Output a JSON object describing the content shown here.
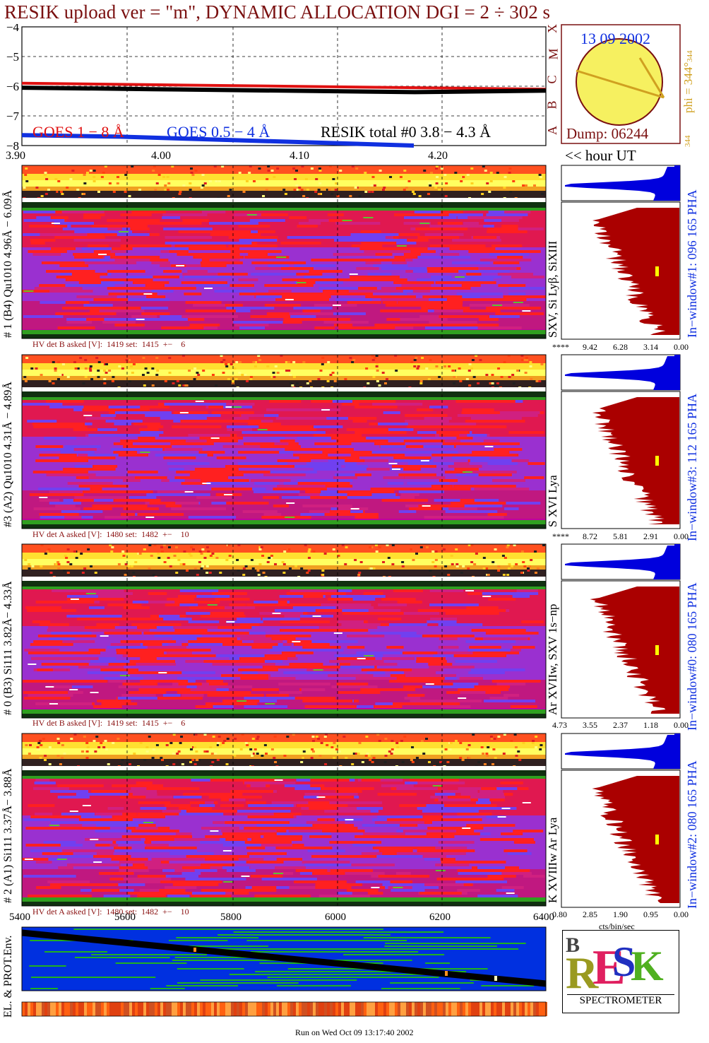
{
  "header": {
    "title": "RESIK upload ver = \"m\", DYNAMIC ALLOCATION  DGI =   2 ÷ 302 s"
  },
  "colors": {
    "title": "#7a1010",
    "goes_1_8": "#e01010",
    "goes_05_4": "#1030e0",
    "resik_total": "#000000",
    "histogram": "#aa0000",
    "pha": "#0000dd",
    "sun": "#f6f060",
    "env_bg": "#0030e0"
  },
  "chart_data": [
    {
      "type": "line",
      "title": "",
      "ylabel": "",
      "ylim": [
        -8,
        -4
      ],
      "y_ticks": [
        "−4",
        "−5",
        "−6",
        "−7",
        "−8"
      ],
      "x_ticks": [
        "3.90",
        "4.00",
        "4.10",
        "4.20"
      ],
      "flare_class_labels": [
        "X",
        "M",
        "C",
        "B",
        "A"
      ],
      "series": [
        {
          "name": "GOES 1 − 8 Å",
          "values": [
            -5.9,
            -5.95,
            -6.0,
            -6.05,
            -6.1
          ]
        },
        {
          "name": "GOES 0.5 − 4 Å",
          "values": [
            -7.65,
            -7.7,
            -7.8,
            -7.9,
            -8.0
          ]
        },
        {
          "name": "RESIK total #0  3.8 − 4.3 Å",
          "values": [
            -6.05,
            -6.1,
            -6.15,
            -6.2,
            -6.15
          ]
        }
      ],
      "legend": [
        "GOES 1 − 8 Å",
        "GOES 0.5 − 4 Å",
        "RESIK total #0  3.8 − 4.3 Å"
      ]
    },
    {
      "type": "heatmap",
      "channel": "# 1 (B4) Qu1010 4.96Å − 6.09Å",
      "lines": "SXV, Si Lyβ, SiXIII",
      "hv_text": "HV det B asked [V]:  1419 set:  1415  +−    6",
      "window_label": "In−window#1:  096 165 PHA",
      "hist_ticks": [
        "****",
        "9.42",
        "6.28",
        "3.14",
        "0.00"
      ]
    },
    {
      "type": "heatmap",
      "channel": "#3 (A2) Qu1010  4.31Å − 4.89Å",
      "lines": "S XVI Lya",
      "hv_text": "HV det A asked [V]:  1480 set:  1482  +−    10",
      "window_label": "In−window#3:  112 165 PHA",
      "hist_ticks": [
        "****",
        "8.72",
        "5.81",
        "2.91",
        "0.00"
      ]
    },
    {
      "type": "heatmap",
      "channel": "# 0 (B3) Si111  3.82Å− 4.33Å",
      "lines": "Ar XVIIw,  SXV 1s−np",
      "hv_text": "HV det B asked [V]:  1419 set:  1415  +−    6",
      "window_label": "In−window#0:  080 165 PHA",
      "hist_ticks": [
        "4.73",
        "3.55",
        "2.37",
        "1.18",
        "0.00"
      ]
    },
    {
      "type": "heatmap",
      "channel": "# 2 (A1) Si111  3.37Å− 3.88Å",
      "lines": "K XVIIIw  Ar Lya",
      "hv_text": "HV det A asked [V]:  1480 set:  1482  +−    10",
      "window_label": "In−window#2:  080 165 PHA",
      "hist_ticks": [
        "0.80",
        "2.85",
        "1.90",
        "0.95",
        "0.00"
      ],
      "hist_xlabel": "cts/bin/sec"
    },
    {
      "type": "heatmap",
      "label": "EL. & PROT.Env.",
      "x_ticks": [
        "5400",
        "5600",
        "5800",
        "6000",
        "6200",
        "6400"
      ]
    }
  ],
  "sun_panel": {
    "date": "13 09 2002",
    "dump": "Dump: 06244",
    "phi_label": "phi = 344°",
    "phi_sub": "344",
    "phi_bottom": "344"
  },
  "hour_label": "<< hour UT",
  "logo": {
    "spectrometer": "SPECTROMETER"
  },
  "footer": {
    "run_text": "Run on Wed Oct 09 13:17:40 2002"
  }
}
